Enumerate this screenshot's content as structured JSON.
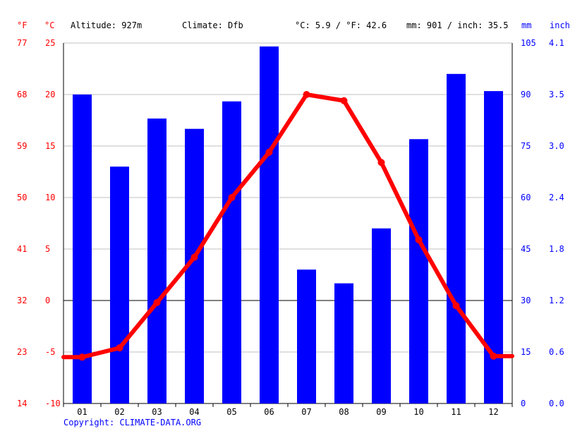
{
  "header": {
    "unit_f": "°F",
    "unit_c": "°C",
    "altitude": "Altitude: 927m",
    "climate": "Climate: Dfb",
    "temp_avg": "°C: 5.9 / °F: 42.6",
    "precip_avg": "mm: 901 / inch: 35.5",
    "unit_mm": "mm",
    "unit_inch": "inch"
  },
  "copyright": "Copyright: CLIMATE-DATA.ORG",
  "colors": {
    "temp": "#ff0000",
    "precip": "#0000ff",
    "grid": "#c0c0c0",
    "zero": "#000000"
  },
  "chart_data": {
    "type": "bar",
    "categories": [
      "01",
      "02",
      "03",
      "04",
      "05",
      "06",
      "07",
      "08",
      "09",
      "10",
      "11",
      "12"
    ],
    "series": [
      {
        "type": "bar",
        "axis": "precipitation",
        "values": [
          90,
          69,
          83,
          80,
          88,
          104,
          39,
          35,
          51,
          77,
          96,
          91
        ]
      },
      {
        "type": "line",
        "axis": "temperature",
        "values": [
          -5.5,
          -4.6,
          -0.2,
          4.2,
          10.0,
          14.4,
          20.0,
          19.4,
          13.4,
          5.9,
          -0.5,
          -5.4
        ]
      }
    ],
    "left_axis_c": {
      "ticks": [
        25,
        20,
        15,
        10,
        5,
        0,
        -5,
        -10
      ],
      "range": [
        -10,
        25
      ]
    },
    "left_axis_f": {
      "ticks": [
        77,
        68,
        59,
        50,
        41,
        32,
        23,
        14
      ]
    },
    "right_axis_mm": {
      "ticks": [
        105,
        90,
        75,
        60,
        45,
        30,
        15,
        0
      ],
      "range": [
        0,
        105
      ]
    },
    "right_axis_inch": {
      "ticks": [
        "4.1",
        "3.5",
        "3.0",
        "2.4",
        "1.8",
        "1.2",
        "0.6",
        "0.0"
      ]
    },
    "grid": true
  }
}
